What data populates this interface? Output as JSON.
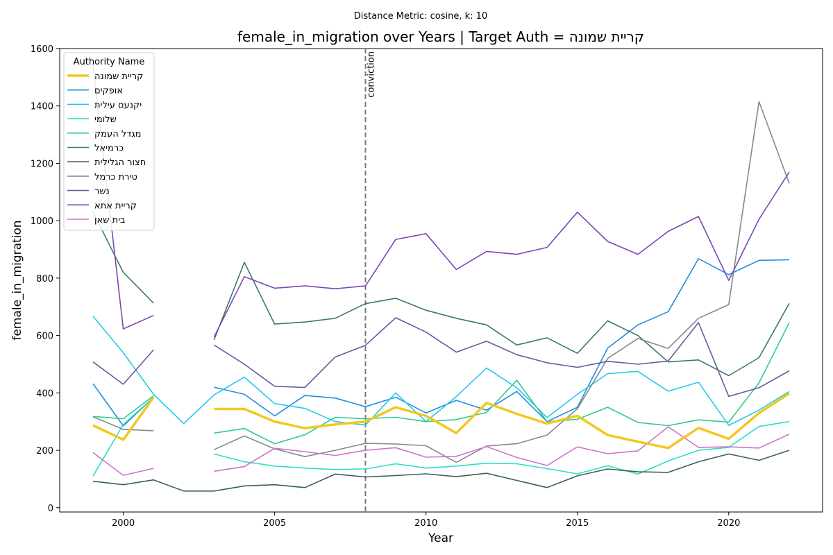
{
  "chart_data": {
    "type": "line",
    "suptitle": "Distance Metric: cosine, k: 10",
    "title": "female_in_migration over Years | Target Auth = קריית שמונה",
    "xlabel": "Year",
    "ylabel": "female_in_migration",
    "xlim": [
      1997.9,
      2023.1
    ],
    "ylim": [
      -15,
      1600
    ],
    "xticks": [
      2000,
      2005,
      2010,
      2015,
      2020
    ],
    "yticks": [
      0,
      200,
      400,
      600,
      800,
      1000,
      1200,
      1400,
      1600
    ],
    "grid": false,
    "legend": {
      "title": "Authority Name",
      "placement": "top-left"
    },
    "vline": {
      "x": 2008,
      "label": "conviction"
    },
    "x": [
      1999,
      2000,
      2001,
      2002,
      2003,
      2004,
      2005,
      2006,
      2007,
      2008,
      2009,
      2010,
      2011,
      2012,
      2013,
      2014,
      2015,
      2016,
      2017,
      2018,
      2019,
      2020,
      2021,
      2022
    ],
    "series": [
      {
        "name": "קריית שמונה",
        "color": "#f2c81f",
        "width": 3.5,
        "values": [
          287,
          237,
          385,
          null,
          344,
          344,
          300,
          277,
          290,
          300,
          350,
          320,
          260,
          365,
          327,
          293,
          320,
          253,
          230,
          208,
          278,
          240,
          330,
          398
        ]
      },
      {
        "name": "אופקים",
        "color": "#1f8ee0",
        "width": 1.6,
        "values": [
          432,
          285,
          385,
          null,
          420,
          395,
          320,
          391,
          382,
          352,
          385,
          330,
          374,
          340,
          405,
          300,
          350,
          556,
          637,
          683,
          868,
          812,
          862,
          864
        ]
      },
      {
        "name": "יקנעם עילית",
        "color": "#22c9ea",
        "width": 1.6,
        "values": [
          667,
          540,
          395,
          293,
          393,
          455,
          363,
          346,
          300,
          288,
          400,
          300,
          387,
          487,
          418,
          314,
          395,
          467,
          475,
          406,
          437,
          287,
          340,
          405
        ]
      },
      {
        "name": "שלומי",
        "color": "#2ae0c4",
        "width": 1.6,
        "values": [
          110,
          290,
          385,
          null,
          187,
          160,
          145,
          138,
          133,
          135,
          153,
          138,
          145,
          155,
          153,
          136,
          118,
          146,
          117,
          163,
          200,
          210,
          283,
          300
        ]
      },
      {
        "name": "מגדל העמק",
        "color": "#2ecc8a",
        "width": 1.6,
        "values": [
          318,
          310,
          390,
          null,
          260,
          276,
          223,
          254,
          315,
          310,
          315,
          300,
          307,
          332,
          444,
          300,
          308,
          350,
          297,
          286,
          306,
          298,
          435,
          645
        ]
      },
      {
        "name": "כרמיאל",
        "color": "#3b7a68",
        "width": 1.6,
        "values": [
          1030,
          820,
          713,
          null,
          585,
          855,
          640,
          647,
          660,
          711,
          730,
          688,
          660,
          637,
          567,
          592,
          538,
          651,
          600,
          508,
          515,
          460,
          523,
          712
        ]
      },
      {
        "name": "חצור הגלילית",
        "color": "#3a6055",
        "width": 1.6,
        "values": [
          92,
          80,
          97,
          58,
          58,
          76,
          80,
          70,
          117,
          107,
          112,
          118,
          108,
          120,
          95,
          70,
          111,
          135,
          125,
          123,
          160,
          187,
          165,
          200
        ]
      },
      {
        "name": "טירת כרמל",
        "color": "#7f8c8a",
        "width": 1.6,
        "values": [
          317,
          273,
          268,
          null,
          202,
          250,
          205,
          178,
          200,
          224,
          222,
          216,
          158,
          215,
          223,
          253,
          345,
          520,
          590,
          555,
          660,
          708,
          1415,
          1130
        ]
      },
      {
        "name": "נשר",
        "color": "#665a9e",
        "width": 1.6,
        "values": [
          508,
          430,
          550,
          null,
          567,
          500,
          423,
          419,
          525,
          566,
          662,
          612,
          542,
          580,
          533,
          505,
          489,
          510,
          500,
          511,
          645,
          388,
          418,
          477
        ]
      },
      {
        "name": "קריית אתא",
        "color": "#7b44b5",
        "width": 1.6,
        "values": [
          1540,
          623,
          670,
          null,
          595,
          805,
          765,
          773,
          763,
          773,
          935,
          955,
          830,
          893,
          883,
          907,
          1030,
          928,
          883,
          963,
          1015,
          792,
          1005,
          1170
        ]
      },
      {
        "name": "בית שאן",
        "color": "#d070cc",
        "width": 1.6,
        "values": [
          192,
          113,
          137,
          null,
          127,
          143,
          207,
          195,
          182,
          200,
          209,
          176,
          179,
          213,
          175,
          147,
          212,
          188,
          198,
          282,
          210,
          212,
          208,
          256
        ]
      }
    ]
  }
}
